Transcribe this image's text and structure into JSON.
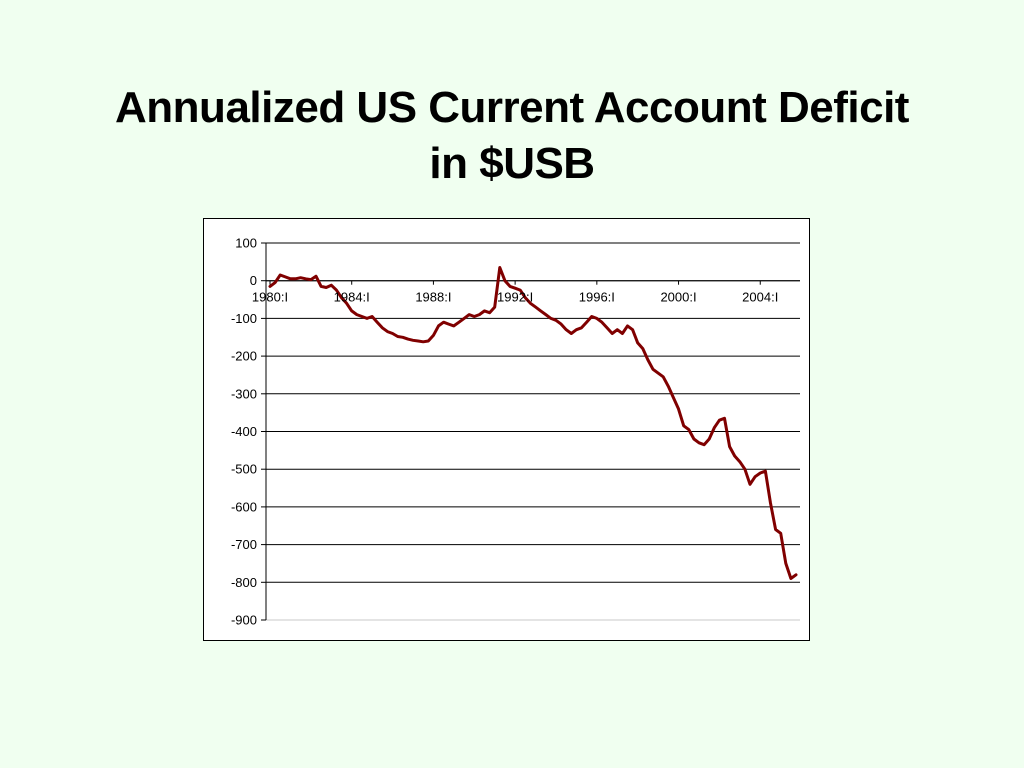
{
  "slide": {
    "title_line1": "Annualized US Current Account Deficit",
    "title_line2": "in $USB"
  },
  "chart_data": {
    "type": "line",
    "title": "Annualized US Current Account Deficit in $USB",
    "xlabel": "",
    "ylabel": "",
    "ylim": [
      -900,
      100
    ],
    "yticks": [
      100,
      0,
      -100,
      -200,
      -300,
      -400,
      -500,
      -600,
      -700,
      -800,
      -900
    ],
    "x_tick_labels": [
      "1980:I",
      "1984:I",
      "1988:I",
      "1992:I",
      "1996:I",
      "2000:I",
      "2004:I"
    ],
    "x_tick_years": [
      1980,
      1984,
      1988,
      1992,
      1996,
      2000,
      2004
    ],
    "x_range": [
      1980.0,
      2005.75
    ],
    "grid": "horizontal",
    "legend": "none",
    "line_color": "#800000",
    "series": [
      {
        "x": [
          1980.0,
          1980.25,
          1980.5,
          1980.75,
          1981.0,
          1981.25,
          1981.5,
          1981.75,
          1982.0,
          1982.25,
          1982.5,
          1982.75,
          1983.0,
          1983.25,
          1983.5,
          1983.75,
          1984.0,
          1984.25,
          1984.5,
          1984.75,
          1985.0,
          1985.25,
          1985.5,
          1985.75,
          1986.0,
          1986.25,
          1986.5,
          1986.75,
          1987.0,
          1987.25,
          1987.5,
          1987.75,
          1988.0,
          1988.25,
          1988.5,
          1988.75,
          1989.0,
          1989.25,
          1989.5,
          1989.75,
          1990.0,
          1990.25,
          1990.5,
          1990.75,
          1991.0,
          1991.25,
          1991.5,
          1991.75,
          1992.0,
          1992.25,
          1992.5,
          1992.75,
          1993.0,
          1993.25,
          1993.5,
          1993.75,
          1994.0,
          1994.25,
          1994.5,
          1994.75,
          1995.0,
          1995.25,
          1995.5,
          1995.75,
          1996.0,
          1996.25,
          1996.5,
          1996.75,
          1997.0,
          1997.25,
          1997.5,
          1997.75,
          1998.0,
          1998.25,
          1998.5,
          1998.75,
          1999.0,
          1999.25,
          1999.5,
          1999.75,
          2000.0,
          2000.25,
          2000.5,
          2000.75,
          2001.0,
          2001.25,
          2001.5,
          2001.75,
          2002.0,
          2002.25,
          2002.5,
          2002.75,
          2003.0,
          2003.25,
          2003.5,
          2003.75,
          2004.0,
          2004.25,
          2004.5,
          2004.75,
          2005.0,
          2005.25,
          2005.5,
          2005.75
        ],
        "values": [
          -15,
          -5,
          15,
          10,
          5,
          5,
          8,
          5,
          3,
          12,
          -15,
          -18,
          -12,
          -25,
          -45,
          -60,
          -80,
          -90,
          -95,
          -100,
          -95,
          -110,
          -125,
          -135,
          -140,
          -148,
          -150,
          -155,
          -158,
          -160,
          -162,
          -160,
          -145,
          -120,
          -110,
          -115,
          -120,
          -110,
          -100,
          -90,
          -95,
          -90,
          -80,
          -85,
          -70,
          35,
          0,
          -15,
          -20,
          -25,
          -45,
          -60,
          -70,
          -80,
          -90,
          -100,
          -105,
          -115,
          -130,
          -140,
          -130,
          -125,
          -110,
          -95,
          -100,
          -110,
          -125,
          -140,
          -130,
          -140,
          -120,
          -130,
          -165,
          -180,
          -210,
          -235,
          -245,
          -255,
          -280,
          -310,
          -340,
          -385,
          -395,
          -420,
          -430,
          -435,
          -420,
          -390,
          -370,
          -365,
          -440,
          -465,
          -480,
          -500,
          -540,
          -520,
          -510,
          -505,
          -590,
          -660,
          -670,
          -750,
          -790,
          -780
        ]
      }
    ]
  }
}
